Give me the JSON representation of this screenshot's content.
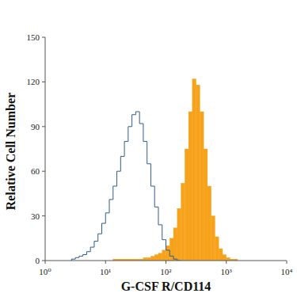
{
  "chart_data": {
    "type": "histogram",
    "x_label": "G-CSF R/CD114",
    "y_label": "Relative Cell Number",
    "log": "x",
    "grid": false,
    "xlim": [
      1,
      10000
    ],
    "ylim": [
      0,
      150
    ],
    "xticks": [
      {
        "value": 1,
        "label": "10⁰"
      },
      {
        "value": 10,
        "label": "10¹"
      },
      {
        "value": 100,
        "label": "10²"
      },
      {
        "value": 1000,
        "label": "10³"
      },
      {
        "value": 10000,
        "label": "10⁴"
      }
    ],
    "yticks": [
      0,
      30,
      60,
      90,
      120,
      150
    ],
    "bins": [
      1,
      1.155,
      1.334,
      1.54,
      1.778,
      2.054,
      2.371,
      2.738,
      3.162,
      3.652,
      4.217,
      4.87,
      5.623,
      6.494,
      7.499,
      8.66,
      10,
      11.55,
      13.34,
      15.4,
      17.78,
      20.54,
      23.71,
      27.38,
      31.62,
      36.52,
      42.17,
      48.7,
      56.23,
      64.94,
      74.99,
      86.6,
      100,
      115.5,
      133.4,
      154,
      177.8,
      205.4,
      237.1,
      273.8,
      316.2,
      365.2,
      421.7,
      487,
      562.3,
      649.4,
      749.9,
      866,
      1000,
      1155,
      1334,
      1540,
      1778,
      2054,
      2371,
      2738,
      3162,
      3652,
      4217,
      4870,
      5623,
      6494,
      7499,
      8660,
      10000
    ],
    "series": [
      {
        "type": "step",
        "color": "#2f5d8c",
        "values": [
          0,
          0,
          0,
          0,
          0,
          0,
          0,
          1,
          2,
          3,
          4,
          6,
          9,
          13,
          18,
          25,
          32,
          41,
          50,
          60,
          70,
          80,
          90,
          98,
          100,
          92,
          80,
          65,
          50,
          36,
          24,
          14,
          7,
          3,
          1,
          0,
          0,
          0,
          0,
          0,
          0,
          0,
          0,
          0,
          0,
          0,
          0,
          0,
          0,
          0,
          0,
          0,
          0,
          0,
          0,
          0,
          0,
          0,
          0,
          0,
          0,
          0,
          0,
          0
        ]
      },
      {
        "type": "bar",
        "color": "#f7a21b",
        "values": [
          0,
          0,
          0,
          0,
          0,
          0,
          0,
          0,
          0,
          0,
          0,
          0,
          0,
          0,
          0,
          0,
          0,
          0,
          1,
          1,
          1,
          1,
          1,
          1,
          1,
          1,
          2,
          2,
          3,
          4,
          5,
          7,
          10,
          15,
          22,
          35,
          52,
          75,
          100,
          122,
          118,
          100,
          75,
          50,
          30,
          16,
          8,
          4,
          2,
          1,
          1,
          0,
          0,
          0,
          0,
          0,
          0,
          0,
          0,
          0,
          0,
          0,
          0,
          0
        ]
      }
    ]
  }
}
